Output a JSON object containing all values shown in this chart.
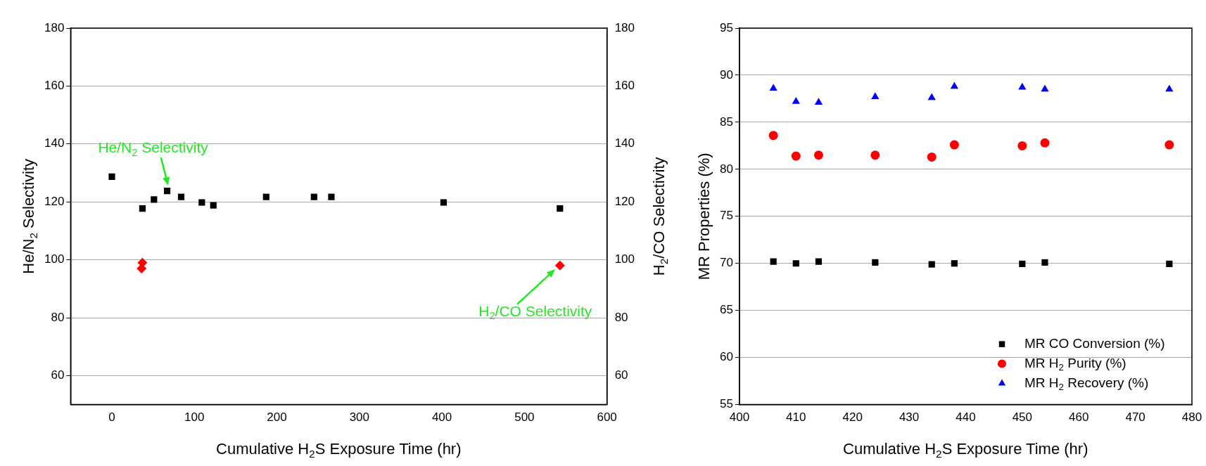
{
  "chart_data": [
    {
      "type": "scatter",
      "xlabel": "Cumulative H$_{2}$S Exposure Time (hr)",
      "ylabel": "He/N$_{2}$ Selectivity",
      "y2label": "H$_{2}$/CO Selectivity",
      "xlim": [
        -50,
        600
      ],
      "xticks": [
        0,
        100,
        200,
        300,
        400,
        500,
        600
      ],
      "ylim": [
        50,
        180
      ],
      "yticks": [
        60,
        80,
        100,
        120,
        140,
        160,
        180
      ],
      "y2lim": [
        50,
        180
      ],
      "y2ticks": [
        60,
        80,
        100,
        120,
        140,
        160,
        180
      ],
      "grid": "y",
      "series": [
        {
          "color": "#000000",
          "marker": "square",
          "x": [
            0,
            37,
            51,
            67,
            84,
            109,
            123,
            187,
            245,
            266,
            402,
            543
          ],
          "values": [
            128.7,
            117.7,
            120.8,
            123.8,
            121.7,
            119.8,
            118.8,
            121.7,
            121.7,
            121.7,
            119.8,
            117.7
          ]
        },
        {
          "color": "#ff0000",
          "marker": "diamond",
          "axis": "y2",
          "x": [
            37,
            36,
            543
          ],
          "values": [
            99,
            97,
            98
          ]
        }
      ],
      "annotations": [
        {
          "text": "He/N$_{2}$ Selectivity",
          "x": 67,
          "y": 123.8
        },
        {
          "text": "H$_{2}$/CO Selectivity",
          "x": 543,
          "y": 98
        }
      ]
    },
    {
      "type": "scatter",
      "xlabel": "Cumulative H$_{2}$S Exposure Time (hr)",
      "ylabel": "MR Properties (%)",
      "xlim": [
        400,
        480
      ],
      "xticks": [
        400,
        410,
        420,
        430,
        440,
        450,
        460,
        470,
        480
      ],
      "ylim": [
        55,
        95
      ],
      "yticks": [
        55,
        60,
        65,
        70,
        75,
        80,
        85,
        90,
        95
      ],
      "grid": "y",
      "legend": "bottom right",
      "series": [
        {
          "name": "MR CO Conversion (%)",
          "color": "#000000",
          "marker": "square",
          "x": [
            406,
            410,
            414,
            424,
            434,
            438,
            450,
            454,
            476
          ],
          "values": [
            70.2,
            70.0,
            70.2,
            70.1,
            69.9,
            70.0,
            69.95,
            70.1,
            69.95
          ]
        },
        {
          "name": "MR H$_{2}$ Purity (%)",
          "color": "#ff0000",
          "marker": "circle",
          "x": [
            406,
            410,
            414,
            424,
            434,
            438,
            450,
            454,
            476
          ],
          "values": [
            83.6,
            81.4,
            81.5,
            81.5,
            81.3,
            82.6,
            82.5,
            82.8,
            82.6
          ]
        },
        {
          "name": "MR H$_{2}$ Recovery (%)",
          "color": "#0000ff",
          "marker": "triangle",
          "x": [
            406,
            410,
            414,
            424,
            434,
            438,
            450,
            454,
            476
          ],
          "values": [
            88.6,
            87.2,
            87.1,
            87.7,
            87.6,
            88.8,
            88.7,
            88.5,
            88.5
          ]
        }
      ]
    }
  ]
}
